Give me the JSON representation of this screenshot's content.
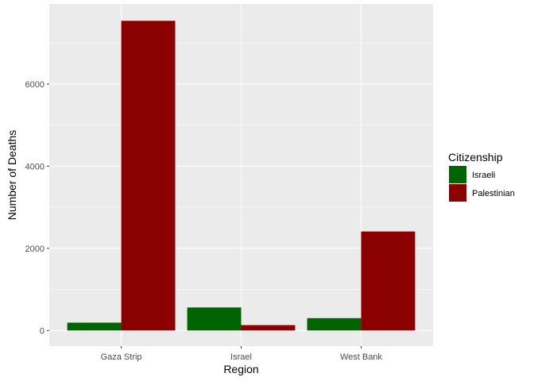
{
  "chart_data": {
    "type": "bar",
    "layout": "grouped",
    "categories": [
      "Gaza Strip",
      "Israel",
      "West Bank"
    ],
    "series": [
      {
        "name": "Israeli",
        "values": [
          190,
          560,
          300
        ],
        "color": "#006400"
      },
      {
        "name": "Palestinian",
        "values": [
          7540,
          130,
          2410
        ],
        "color": "#8B0000"
      }
    ],
    "xlabel": "Region",
    "ylabel": "Number of Deaths",
    "ylim": [
      -380,
      7950
    ],
    "yticks": [
      0,
      2000,
      4000,
      6000
    ],
    "ytick_labels": [
      "0",
      "2000",
      "4000",
      "6000"
    ],
    "legend": {
      "title": "Citizenship",
      "position": "right"
    },
    "grid": true,
    "panel_background": "#EBEBEB"
  }
}
